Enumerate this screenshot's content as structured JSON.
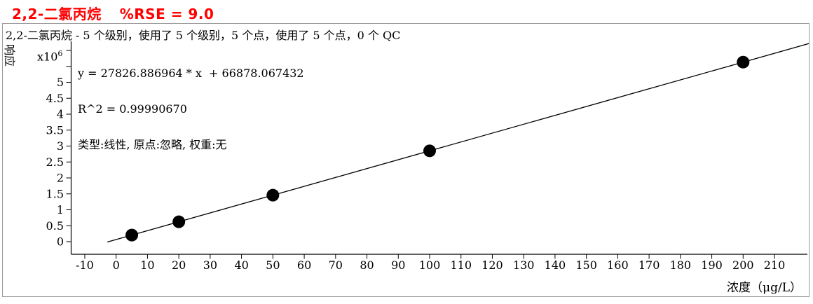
{
  "header": {
    "compound": "2,2-二氯丙烷",
    "rse": "%RSE = 9.0",
    "title_color": "#ff0000"
  },
  "info_line": "2,2-二氯丙烷 - 5 个级别，使用了 5 个级别，5 个点，使用了 5 个点，0 个 QC",
  "fit": {
    "equation": "y = 27826.886964 * x  + 66878.067432",
    "r_squared": "R^2 = 0.99990670",
    "type_line": "类型:线性, 原点:忽略, 权重:无"
  },
  "axes": {
    "y_label": "响应",
    "y_unit_base": "x10",
    "y_unit_exp": "6",
    "x_label": "浓度（μg/L）"
  },
  "chart_data": {
    "type": "scatter",
    "title": "2,2-二氯丙烷 %RSE = 9.0",
    "xlabel": "浓度（μg/L）",
    "ylabel": "响应 x10^6",
    "x": [
      5,
      20,
      50,
      100,
      200
    ],
    "y_response": [
      206012,
      623416,
      1458222,
      2849567,
      5632256
    ],
    "y_response_x10e6": [
      0.206,
      0.623,
      1.458,
      2.85,
      5.632
    ],
    "fit_line": {
      "slope": 27826.886964,
      "intercept": 66878.067432,
      "r2": 0.9999067,
      "type": "线性",
      "origin": "忽略",
      "weight": "无"
    },
    "levels": 5,
    "levels_used": 5,
    "points": 5,
    "points_used": 5,
    "qc_count": 0,
    "x_ticks": [
      -10,
      0,
      10,
      20,
      30,
      40,
      50,
      60,
      70,
      80,
      90,
      100,
      110,
      120,
      130,
      140,
      150,
      160,
      170,
      180,
      190,
      200,
      210
    ],
    "y_ticks": [
      0,
      0.5,
      1,
      1.5,
      2,
      2.5,
      3,
      3.5,
      4,
      4.5,
      5
    ],
    "y_minor_ticks": [
      5.5,
      6
    ],
    "xlim": [
      -14.5,
      221.5
    ],
    "ylim_x10e6": [
      -0.4,
      6.8
    ],
    "grid": false,
    "marker_color": "#000000",
    "line_color": "#000000"
  }
}
